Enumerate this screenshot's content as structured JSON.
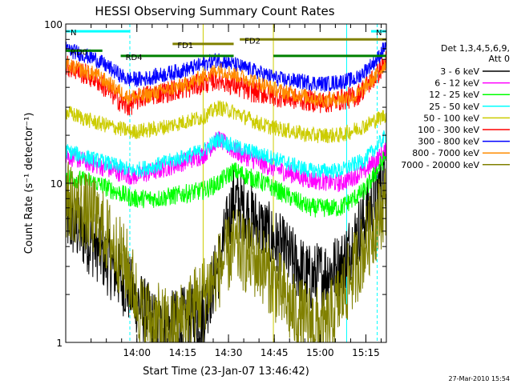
{
  "chart_data": {
    "type": "line",
    "title": "HESSI Observing Summary Count Rates",
    "xlabel": "Start Time (23-Jan-07 13:46:42)",
    "ylabel": "Count Rate (s⁻¹ detector⁻¹)",
    "yscale": "log",
    "ylim": [
      1,
      100
    ],
    "xlim_minutes": [
      -10,
      95
    ],
    "x_ticks": [
      {
        "label": "14:00",
        "minute": 13.3
      },
      {
        "label": "14:15",
        "minute": 28.3
      },
      {
        "label": "14:30",
        "minute": 43.3
      },
      {
        "label": "14:45",
        "minute": 58.3
      },
      {
        "label": "15:00",
        "minute": 73.3
      },
      {
        "label": "15:15",
        "minute": 88.3
      }
    ],
    "y_ticks": [
      {
        "label": "1",
        "value": 1
      },
      {
        "label": "10",
        "value": 10
      },
      {
        "label": "100",
        "value": 100
      }
    ],
    "legend": {
      "position": "right",
      "header": [
        "Det 1,3,4,5,6,9,",
        "Att 0"
      ]
    },
    "series": [
      {
        "name": "3 - 6 keV",
        "color": "#000000",
        "x": [
          -10,
          0,
          12,
          20,
          35,
          40,
          45,
          55,
          70,
          80,
          88,
          95
        ],
        "y": [
          6,
          4,
          2,
          1.2,
          1.5,
          3,
          8,
          5,
          2.5,
          3,
          6,
          12
        ]
      },
      {
        "name": "6 - 12 keV",
        "color": "#ff00ff",
        "x": [
          -10,
          0,
          12,
          20,
          35,
          40,
          45,
          55,
          70,
          80,
          88,
          95
        ],
        "y": [
          15,
          13,
          11,
          12,
          15,
          19,
          16,
          13,
          10.5,
          10,
          12,
          16
        ]
      },
      {
        "name": "12 - 25 keV",
        "color": "#00ff00",
        "x": [
          -10,
          0,
          12,
          20,
          35,
          40,
          45,
          55,
          70,
          80,
          88,
          95
        ],
        "y": [
          11,
          10,
          8,
          8,
          9,
          10,
          12,
          10,
          7,
          7,
          9,
          15
        ]
      },
      {
        "name": "25 - 50 keV",
        "color": "#00ffff",
        "x": [
          -10,
          0,
          12,
          20,
          35,
          40,
          45,
          55,
          70,
          80,
          88,
          95
        ],
        "y": [
          16,
          14,
          12,
          13,
          16,
          19,
          17,
          15,
          12,
          12,
          14,
          20
        ]
      },
      {
        "name": "50 - 100 keV",
        "color": "#cccc00",
        "x": [
          -10,
          0,
          12,
          20,
          35,
          40,
          45,
          55,
          70,
          80,
          88,
          95
        ],
        "y": [
          28,
          24,
          21,
          22,
          26,
          30,
          28,
          23,
          20,
          20,
          23,
          27
        ]
      },
      {
        "name": "100 - 300 keV",
        "color": "#ff0000",
        "x": [
          -10,
          0,
          10,
          15,
          30,
          40,
          50,
          60,
          75,
          85,
          92,
          95
        ],
        "y": [
          55,
          45,
          30,
          35,
          40,
          45,
          38,
          35,
          32,
          35,
          48,
          60
        ]
      },
      {
        "name": "300 - 800 keV",
        "color": "#0000ff",
        "x": [
          -10,
          0,
          10,
          15,
          30,
          40,
          50,
          60,
          75,
          85,
          92,
          95
        ],
        "y": [
          70,
          60,
          45,
          45,
          52,
          60,
          52,
          45,
          42,
          45,
          60,
          75
        ]
      },
      {
        "name": "800 - 7000 keV",
        "color": "#ff8c00",
        "x": [
          -10,
          0,
          10,
          15,
          30,
          40,
          50,
          60,
          75,
          85,
          92,
          95
        ],
        "y": [
          55,
          48,
          35,
          35,
          42,
          52,
          45,
          38,
          33,
          35,
          48,
          58
        ]
      },
      {
        "name": "7000 - 20000 keV",
        "color": "#808000",
        "x": [
          -10,
          0,
          10,
          15,
          25,
          35,
          45,
          55,
          65,
          75,
          85,
          95
        ],
        "y": [
          8,
          6,
          3,
          1.5,
          1.2,
          2,
          4,
          3,
          1.5,
          1.2,
          3,
          8
        ]
      }
    ],
    "overlays": [
      {
        "label": "N",
        "color": "#00ffff",
        "x": [
          -10,
          11
        ],
        "y": 90
      },
      {
        "label": "N",
        "color": "#00ffff",
        "x": [
          90,
          95
        ],
        "y": 90
      },
      {
        "label": "FD1",
        "color": "#808000",
        "x": [
          25,
          45
        ],
        "y": 75
      },
      {
        "label": "FD2",
        "color": "#808000",
        "x": [
          47,
          95
        ],
        "y": 80
      },
      {
        "label": "RD0",
        "color": "#008000",
        "x": [
          -10,
          2
        ],
        "y": 68
      },
      {
        "label": "RD4",
        "color": "#008000",
        "x": [
          8,
          45
        ],
        "y": 63
      },
      {
        "label": "",
        "color": "#008000",
        "x": [
          58,
          95
        ],
        "y": 63
      }
    ],
    "vertical_lines": [
      {
        "minute": 11,
        "color": "#00ffff",
        "dashed": true
      },
      {
        "minute": 92,
        "color": "#00ffff",
        "dashed": true
      },
      {
        "minute": -10,
        "color": "#00ffff",
        "dashed": false
      },
      {
        "minute": 82,
        "color": "#00ffff",
        "dashed": false
      },
      {
        "minute": 35,
        "color": "#cccc00",
        "dashed": false
      },
      {
        "minute": 58,
        "color": "#cccc00",
        "dashed": false
      }
    ]
  },
  "footer": {
    "timestamp": "27-Mar-2010 15:54"
  }
}
